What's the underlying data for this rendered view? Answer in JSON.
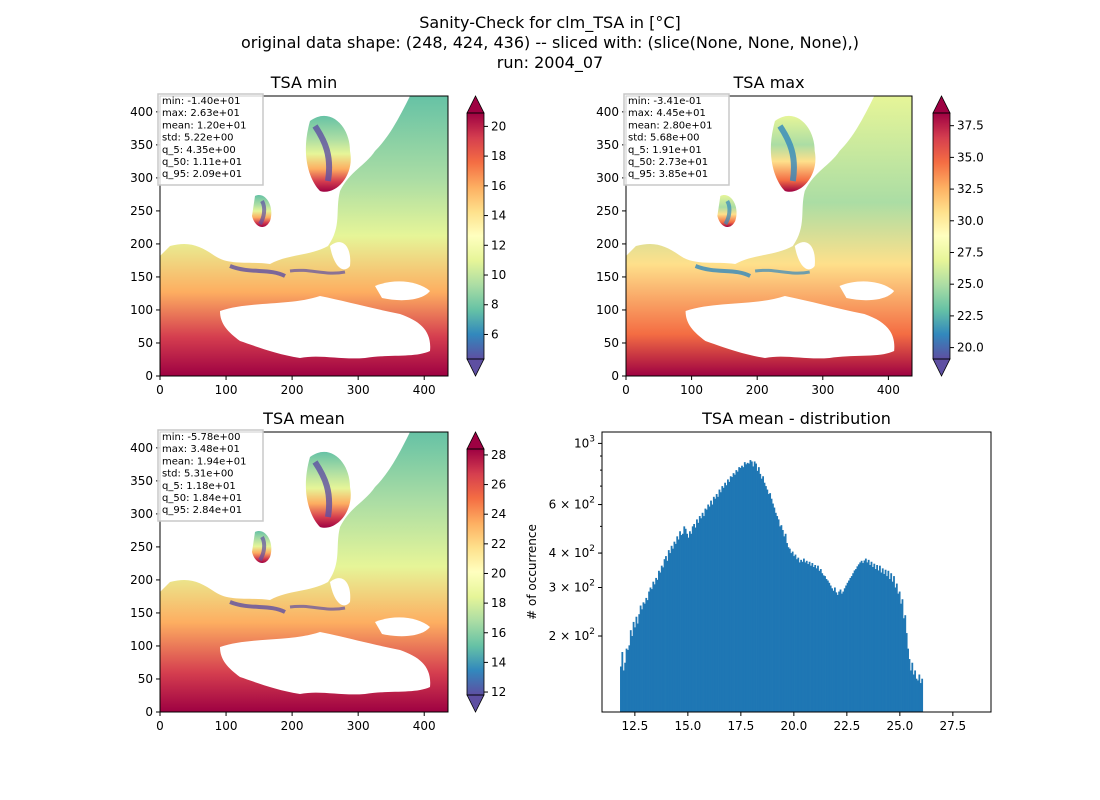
{
  "figure": {
    "title_lines": [
      "Sanity-Check for clm_TSA in [°C]",
      "original data shape: (248, 424, 436) -- sliced with: (slice(None, None, None),)",
      "run: 2004_07"
    ]
  },
  "colors": {
    "spectral_r": [
      "#5e4fa2",
      "#3288bd",
      "#66c2a5",
      "#abdda4",
      "#e6f598",
      "#ffffbf",
      "#fee08b",
      "#fdae61",
      "#f46d43",
      "#d53e4f",
      "#9e0142"
    ],
    "hist_bar": "#1f77b4",
    "frame": "#000000",
    "stats_box_edge": "#c8c8c8"
  },
  "chart_data": [
    {
      "type": "heatmap",
      "title": "TSA min",
      "xlim": [
        0,
        436
      ],
      "ylim": [
        0,
        424
      ],
      "xticks": [
        "0",
        "100",
        "200",
        "300",
        "400"
      ],
      "yticks": [
        "0",
        "50",
        "100",
        "150",
        "200",
        "250",
        "300",
        "350",
        "400"
      ],
      "colorbar": {
        "vmin": 4.35,
        "vmax": 20.9,
        "extend": "both",
        "ticks": [
          "6",
          "8",
          "10",
          "12",
          "14",
          "16",
          "18",
          "20"
        ],
        "tick_values": [
          6,
          8,
          10,
          12,
          14,
          16,
          18,
          20
        ]
      },
      "stats": [
        "min: -1.40e+01",
        "max: 2.63e+01",
        "mean: 1.20e+01",
        "std: 5.22e+00",
        "q_5: 4.35e+00",
        "q_50: 1.11e+01",
        "q_95: 2.09e+01"
      ]
    },
    {
      "type": "heatmap",
      "title": "TSA max",
      "xlim": [
        0,
        436
      ],
      "ylim": [
        0,
        424
      ],
      "xticks": [
        "0",
        "100",
        "200",
        "300",
        "400"
      ],
      "yticks": [
        "0",
        "50",
        "100",
        "150",
        "200",
        "250",
        "300",
        "350",
        "400"
      ],
      "colorbar": {
        "vmin": 19.1,
        "vmax": 38.5,
        "extend": "both",
        "ticks": [
          "20.0",
          "22.5",
          "25.0",
          "27.5",
          "30.0",
          "32.5",
          "35.0",
          "37.5"
        ],
        "tick_values": [
          20.0,
          22.5,
          25.0,
          27.5,
          30.0,
          32.5,
          35.0,
          37.5
        ]
      },
      "stats": [
        "min: -3.41e-01",
        "max: 4.45e+01",
        "mean: 2.80e+01",
        "std: 5.68e+00",
        "q_5: 1.91e+01",
        "q_50: 2.73e+01",
        "q_95: 3.85e+01"
      ]
    },
    {
      "type": "heatmap",
      "title": "TSA mean",
      "xlim": [
        0,
        436
      ],
      "ylim": [
        0,
        424
      ],
      "xticks": [
        "0",
        "100",
        "200",
        "300",
        "400"
      ],
      "yticks": [
        "0",
        "50",
        "100",
        "150",
        "200",
        "250",
        "300",
        "350",
        "400"
      ],
      "colorbar": {
        "vmin": 11.8,
        "vmax": 28.4,
        "extend": "both",
        "ticks": [
          "12",
          "14",
          "16",
          "18",
          "20",
          "22",
          "24",
          "26",
          "28"
        ],
        "tick_values": [
          12,
          14,
          16,
          18,
          20,
          22,
          24,
          26,
          28
        ]
      },
      "stats": [
        "min: -5.78e+00",
        "max: 3.48e+01",
        "mean: 1.94e+01",
        "std: 5.31e+00",
        "q_5: 1.18e+01",
        "q_50: 1.84e+01",
        "q_95: 2.84e+01"
      ]
    },
    {
      "type": "bar",
      "title": "TSA mean - distribution",
      "ylabel": "# of occurrence",
      "xlim": [
        10.95,
        29.3
      ],
      "ylim": [
        106,
        1100
      ],
      "yscale": "log",
      "xticks": [
        "12.5",
        "15.0",
        "17.5",
        "20.0",
        "22.5",
        "25.0",
        "27.5"
      ],
      "xtick_values": [
        12.5,
        15.0,
        17.5,
        20.0,
        22.5,
        25.0,
        27.5
      ],
      "yticks": [
        "10^3",
        "6×10^2",
        "4×10^2",
        "3×10^2",
        "2×10^2"
      ],
      "yticks_display": [
        {
          "base": "10",
          "exp": "3"
        },
        {
          "base": "6 × 10",
          "exp": "2"
        },
        {
          "base": "4 × 10",
          "exp": "2"
        },
        {
          "base": "3 × 10",
          "exp": "2"
        },
        {
          "base": "2 × 10",
          "exp": "2"
        }
      ],
      "ytick_values": [
        1000,
        600,
        400,
        300,
        200
      ],
      "bin_start": 11.8,
      "bin_width": 0.0664,
      "values": [
        155,
        175,
        150,
        160,
        180,
        178,
        185,
        210,
        200,
        225,
        215,
        235,
        222,
        240,
        258,
        250,
        265,
        262,
        275,
        270,
        290,
        300,
        296,
        315,
        308,
        325,
        320,
        345,
        340,
        360,
        355,
        380,
        390,
        375,
        410,
        400,
        425,
        415,
        440,
        432,
        460,
        448,
        480,
        465,
        470,
        500,
        490,
        470,
        455,
        480,
        470,
        500,
        510,
        495,
        530,
        515,
        545,
        535,
        560,
        545,
        580,
        575,
        600,
        590,
        620,
        600,
        640,
        630,
        655,
        640,
        680,
        665,
        700,
        690,
        720,
        705,
        740,
        725,
        760,
        755,
        780,
        770,
        800,
        790,
        820,
        815,
        830,
        820,
        855,
        840,
        850,
        845,
        870,
        860,
        825,
        860,
        845,
        795,
        820,
        775,
        745,
        760,
        720,
        700,
        680,
        655,
        660,
        630,
        605,
        585,
        560,
        545,
        530,
        500,
        505,
        485,
        460,
        470,
        435,
        420,
        415,
        400,
        405,
        390,
        395,
        380,
        385,
        370,
        378,
        372,
        382,
        370,
        375,
        365,
        372,
        360,
        368,
        356,
        362,
        352,
        360,
        345,
        350,
        338,
        332,
        330,
        322,
        318,
        312,
        305,
        298,
        292,
        300,
        288,
        282,
        290,
        295,
        285,
        290,
        298,
        305,
        312,
        318,
        325,
        330,
        338,
        346,
        350,
        358,
        364,
        370,
        375,
        368,
        376,
        382,
        370,
        378,
        362,
        372,
        356,
        366,
        350,
        362,
        346,
        360,
        340,
        352,
        336,
        348,
        330,
        345,
        322,
        338,
        315,
        330,
        300,
        310,
        285,
        290,
        262,
        272,
        232,
        238,
        205,
        180,
        165,
        150,
        160,
        145,
        150,
        140,
        138,
        145,
        135,
        140
      ]
    }
  ]
}
